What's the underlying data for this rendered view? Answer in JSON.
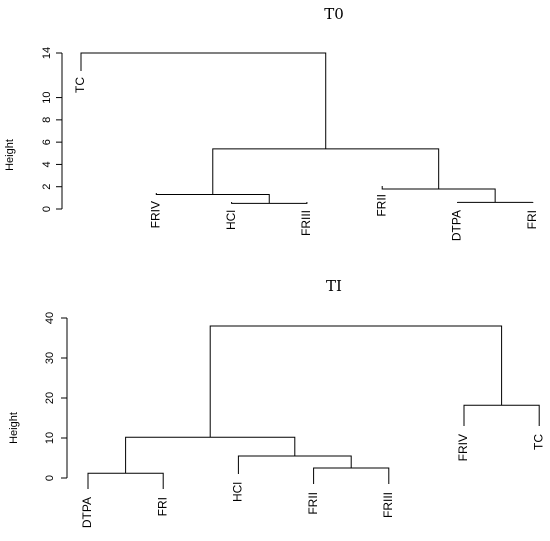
{
  "chart_data": [
    {
      "type": "dendrogram",
      "title": "T0",
      "ylabel": "Height",
      "yticks": [
        0,
        2,
        4,
        6,
        8,
        10,
        14
      ],
      "ylim": [
        0,
        14
      ],
      "leaves": [
        "TC",
        "FRIV",
        "HCl",
        "FRIII",
        "FRII",
        "DTPA",
        "FRI"
      ],
      "merges": [
        {
          "a": {
            "leaf": 2
          },
          "b": {
            "leaf": 3
          },
          "height": 0.5
        },
        {
          "a": {
            "leaf": 5
          },
          "b": {
            "leaf": 6
          },
          "height": 0.6
        },
        {
          "a": {
            "leaf": 1
          },
          "b": {
            "merge": 0
          },
          "height": 1.3
        },
        {
          "a": {
            "leaf": 4
          },
          "b": {
            "merge": 1
          },
          "height": 1.8
        },
        {
          "a": {
            "merge": 2
          },
          "b": {
            "merge": 3
          },
          "height": 5.4
        },
        {
          "a": {
            "leaf": 0
          },
          "b": {
            "merge": 4
          },
          "height": 14.0
        }
      ]
    },
    {
      "type": "dendrogram",
      "title": "TI",
      "ylabel": "Height",
      "yticks": [
        0,
        10,
        20,
        30,
        40
      ],
      "ylim": [
        0,
        40
      ],
      "leaves": [
        "DTPA",
        "FRI",
        "HCl",
        "FRII",
        "FRIII",
        "FRIV",
        "TC"
      ],
      "merges": [
        {
          "a": {
            "leaf": 0
          },
          "b": {
            "leaf": 1
          },
          "height": 1.2
        },
        {
          "a": {
            "leaf": 3
          },
          "b": {
            "leaf": 4
          },
          "height": 2.5
        },
        {
          "a": {
            "leaf": 2
          },
          "b": {
            "merge": 1
          },
          "height": 5.5
        },
        {
          "a": {
            "merge": 0
          },
          "b": {
            "merge": 2
          },
          "height": 10.2
        },
        {
          "a": {
            "leaf": 5
          },
          "b": {
            "leaf": 6
          },
          "height": 18.2
        },
        {
          "a": {
            "merge": 3
          },
          "b": {
            "merge": 4
          },
          "height": 38.0
        }
      ]
    }
  ]
}
